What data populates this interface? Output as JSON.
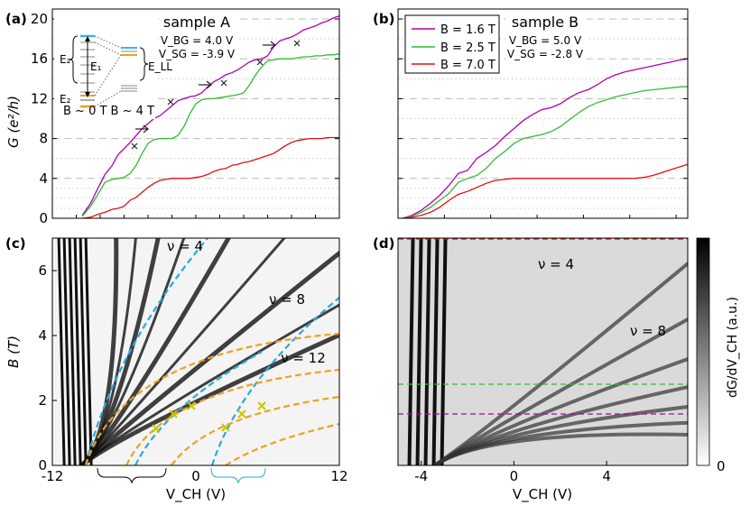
{
  "chart_data": [
    {
      "panel": "(a)",
      "type": "line",
      "title": "sample A",
      "params": [
        "V_BG = 4.0 V",
        "V_SG = -3.9 V"
      ],
      "ylabel": "G (e²/h)",
      "xlabel": "",
      "xlim": [
        -12,
        12
      ],
      "ylim": [
        0,
        21
      ],
      "yticks": [
        "0",
        "4",
        "8",
        "12",
        "16",
        "20"
      ],
      "inset": {
        "labels": [
          "E₂",
          "E₁",
          "E₂",
          "E_LL"
        ],
        "bottom_text": "B ~ 0 T B ~ 4 T"
      },
      "series": [
        {
          "name": "B = 1.6 T",
          "color": "#b000b0",
          "x": [
            -9.5,
            -8.8,
            -8.2,
            -7.6,
            -7.0,
            -6.5,
            -6.0,
            -5.5,
            -5.0,
            -4.5,
            -4.0,
            -3.5,
            -3.0,
            -2.5,
            -2.0,
            -1.5,
            -1.0,
            -0.5,
            0.0,
            0.5,
            1.0,
            1.5,
            2.0,
            2.5,
            3.0,
            3.5,
            4.0,
            4.5,
            5.0,
            5.5,
            6.0,
            6.5,
            7.0,
            7.5,
            8.0,
            8.5,
            9.0,
            9.5,
            10.0,
            10.5,
            11.0,
            11.5,
            12.0
          ],
          "y": [
            0.3,
            1.5,
            3.0,
            4.4,
            5.3,
            6.4,
            7.0,
            7.6,
            8.3,
            9.0,
            9.5,
            10.0,
            10.3,
            10.8,
            11.3,
            11.8,
            12.0,
            12.2,
            12.3,
            12.6,
            13.2,
            13.7,
            14.0,
            14.4,
            14.6,
            14.9,
            15.3,
            15.7,
            15.9,
            16.0,
            16.3,
            17.2,
            17.8,
            18.0,
            18.2,
            18.5,
            18.9,
            19.1,
            19.3,
            19.6,
            19.8,
            20.1,
            20.3
          ]
        },
        {
          "name": "B = 2.5 T",
          "color": "#33bb33",
          "x": [
            -9.5,
            -8.8,
            -8.2,
            -7.6,
            -7.0,
            -6.5,
            -6.0,
            -5.5,
            -5.0,
            -4.5,
            -4.0,
            -3.5,
            -3.0,
            -2.5,
            -2.0,
            -1.5,
            -1.0,
            -0.5,
            0.0,
            0.5,
            1.0,
            1.5,
            2.0,
            2.5,
            3.0,
            3.5,
            4.0,
            4.5,
            5.0,
            5.5,
            6.0,
            6.5,
            7.0,
            7.5,
            8.0,
            8.5,
            9.0,
            9.5,
            10.0,
            10.5,
            11.0,
            11.5,
            12.0
          ],
          "y": [
            0.2,
            1.2,
            2.4,
            3.6,
            3.9,
            4.0,
            4.1,
            4.5,
            5.3,
            6.5,
            7.5,
            7.9,
            8.0,
            8.0,
            8.0,
            8.3,
            9.2,
            10.5,
            11.5,
            11.9,
            12.0,
            12.0,
            12.1,
            12.2,
            12.3,
            12.4,
            12.6,
            13.4,
            14.4,
            15.2,
            15.8,
            15.9,
            16.0,
            16.0,
            16.0,
            16.1,
            16.2,
            16.2,
            16.3,
            16.3,
            16.4,
            16.4,
            16.5
          ]
        },
        {
          "name": "B = 7.0 T",
          "color": "#dd1111",
          "x": [
            -9.5,
            -8.8,
            -8.2,
            -7.6,
            -7.0,
            -6.5,
            -6.0,
            -5.5,
            -5.0,
            -4.5,
            -4.0,
            -3.5,
            -3.0,
            -2.5,
            -2.0,
            -1.5,
            -1.0,
            -0.5,
            0.0,
            0.5,
            1.0,
            1.5,
            2.0,
            2.5,
            3.0,
            3.5,
            4.0,
            4.5,
            5.0,
            5.5,
            6.0,
            6.5,
            7.0,
            7.5,
            8.0,
            8.5,
            9.0,
            9.5,
            10.0,
            10.5,
            11.0,
            11.5,
            12.0
          ],
          "y": [
            0.0,
            0.1,
            0.4,
            0.6,
            0.9,
            1.0,
            1.2,
            1.8,
            2.1,
            2.6,
            3.1,
            3.5,
            3.8,
            3.9,
            4.0,
            4.0,
            4.0,
            4.0,
            4.1,
            4.2,
            4.4,
            4.7,
            4.9,
            5.0,
            5.3,
            5.4,
            5.6,
            5.7,
            5.9,
            6.1,
            6.3,
            6.5,
            6.9,
            7.3,
            7.6,
            7.8,
            7.9,
            8.0,
            8.0,
            8.0,
            8.1,
            8.1,
            8.1
          ]
        }
      ]
    },
    {
      "panel": "(b)",
      "type": "line",
      "title": "sample B",
      "params": [
        "V_BG = 5.0 V",
        "V_SG = -2.8 V"
      ],
      "xlabel": "",
      "ylabel": "",
      "xlim": [
        -5,
        7.5
      ],
      "ylim": [
        0,
        21
      ],
      "legend_position": "top-left",
      "series": [
        {
          "name": "B = 1.6 T",
          "color": "#b000b0",
          "x": [
            -4.8,
            -4.4,
            -4.0,
            -3.6,
            -3.2,
            -2.8,
            -2.4,
            -2.0,
            -1.6,
            -1.2,
            -0.8,
            -0.4,
            0.0,
            0.4,
            0.8,
            1.2,
            1.6,
            2.0,
            2.4,
            2.8,
            3.2,
            3.6,
            4.0,
            4.4,
            4.8,
            5.2,
            5.6,
            6.0,
            6.4,
            6.8,
            7.2,
            7.5
          ],
          "y": [
            0.0,
            0.3,
            0.8,
            1.5,
            2.3,
            3.3,
            4.5,
            4.8,
            6.0,
            6.6,
            7.3,
            8.2,
            9.0,
            9.8,
            10.4,
            10.9,
            11.1,
            11.5,
            12.1,
            12.6,
            12.9,
            13.4,
            14.0,
            14.4,
            14.7,
            14.9,
            15.1,
            15.3,
            15.5,
            15.7,
            15.9,
            16.0
          ]
        },
        {
          "name": "B = 2.5 T",
          "color": "#33bb33",
          "x": [
            -4.8,
            -4.4,
            -4.0,
            -3.6,
            -3.2,
            -2.8,
            -2.4,
            -2.0,
            -1.6,
            -1.2,
            -0.8,
            -0.4,
            0.0,
            0.4,
            0.8,
            1.2,
            1.6,
            2.0,
            2.4,
            2.8,
            3.2,
            3.6,
            4.0,
            4.4,
            4.8,
            5.2,
            5.6,
            6.0,
            6.4,
            6.8,
            7.2,
            7.5
          ],
          "y": [
            0.0,
            0.2,
            0.6,
            1.1,
            1.8,
            2.5,
            3.6,
            4.0,
            4.3,
            5.0,
            6.0,
            6.7,
            7.5,
            8.0,
            8.2,
            8.4,
            8.7,
            9.2,
            9.9,
            10.6,
            11.2,
            11.6,
            11.9,
            12.2,
            12.4,
            12.6,
            12.8,
            12.9,
            13.0,
            13.1,
            13.2,
            13.2
          ]
        },
        {
          "name": "B = 7.0 T",
          "color": "#dd1111",
          "x": [
            -4.8,
            -4.4,
            -4.0,
            -3.6,
            -3.2,
            -2.8,
            -2.4,
            -2.0,
            -1.6,
            -1.2,
            -0.8,
            -0.4,
            0.0,
            0.4,
            0.8,
            1.2,
            1.6,
            2.0,
            2.4,
            2.8,
            3.2,
            3.6,
            4.0,
            4.4,
            4.8,
            5.2,
            5.6,
            6.0,
            6.4,
            6.8,
            7.2,
            7.5
          ],
          "y": [
            0.0,
            0.1,
            0.3,
            0.6,
            1.1,
            1.8,
            2.4,
            2.7,
            3.1,
            3.5,
            3.8,
            3.9,
            4.0,
            4.0,
            4.0,
            4.0,
            4.0,
            4.0,
            4.0,
            4.0,
            4.0,
            4.0,
            4.0,
            4.0,
            4.0,
            4.0,
            4.1,
            4.3,
            4.6,
            4.9,
            5.2,
            5.4
          ]
        }
      ]
    },
    {
      "panel": "(c)",
      "type": "heatmap",
      "xlabel": "V_CH (V)",
      "ylabel": "B (T)",
      "xlim": [
        -12,
        12
      ],
      "ylim": [
        0,
        7
      ],
      "xticks": [
        "-12",
        "0",
        "12"
      ],
      "yticks": [
        "0",
        "2",
        "4",
        "6"
      ],
      "annotations": [
        "ν = 4",
        "ν = 8",
        "ν = 12"
      ]
    },
    {
      "panel": "(d)",
      "type": "heatmap",
      "xlabel": "V_CH (V)",
      "ylabel": "",
      "xlim": [
        -5,
        7.5
      ],
      "ylim": [
        0,
        7
      ],
      "xticks": [
        "-4",
        "0",
        "4"
      ],
      "annotations": [
        "ν = 4",
        "ν = 8"
      ],
      "colorbar": {
        "label": "dG/dV_CH (a.u.)",
        "min_label": "0"
      }
    }
  ]
}
